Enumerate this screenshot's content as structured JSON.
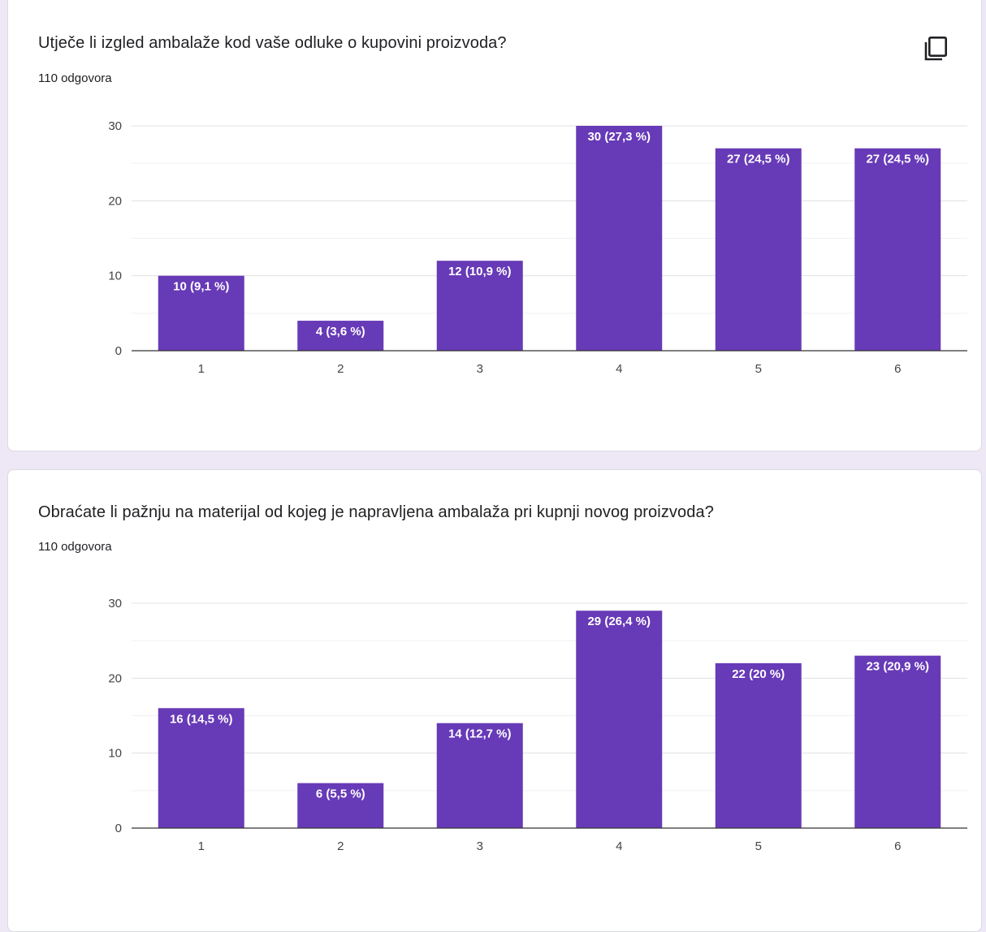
{
  "colors": {
    "bar": "#673ab7",
    "page_bg": "#ede7f6",
    "grid": "#e0e0e0",
    "axis": "#333333"
  },
  "copy_icon": "copy-icon",
  "questions": [
    {
      "title": "Utječe li izgled ambalaže kod vaše odluke o kupovini proizvoda?",
      "responses": "110 odgovora"
    },
    {
      "title": "Obraćate li pažnju na materijal od kojeg je napravljena ambalaža pri kupnji novog proizvoda?",
      "responses": "110 odgovora"
    }
  ],
  "chart_data": [
    {
      "type": "bar",
      "categories": [
        "1",
        "2",
        "3",
        "4",
        "5",
        "6"
      ],
      "values": [
        10,
        4,
        12,
        30,
        27,
        27
      ],
      "data_labels": [
        "10 (9,1 %)",
        "4 (3,6 %)",
        "12 (10,9 %)",
        "30 (27,3 %)",
        "27 (24,5 %)",
        "27 (24,5 %)"
      ],
      "ylim": [
        0,
        30
      ],
      "yticks": [
        "0",
        "10",
        "20",
        "30"
      ],
      "grid": true
    },
    {
      "type": "bar",
      "categories": [
        "1",
        "2",
        "3",
        "4",
        "5",
        "6"
      ],
      "values": [
        16,
        6,
        14,
        29,
        22,
        23
      ],
      "data_labels": [
        "16 (14,5 %)",
        "6 (5,5 %)",
        "14 (12,7 %)",
        "29 (26,4 %)",
        "22 (20 %)",
        "23 (20,9 %)"
      ],
      "ylim": [
        0,
        30
      ],
      "yticks": [
        "0",
        "10",
        "20",
        "30"
      ],
      "grid": true
    }
  ]
}
